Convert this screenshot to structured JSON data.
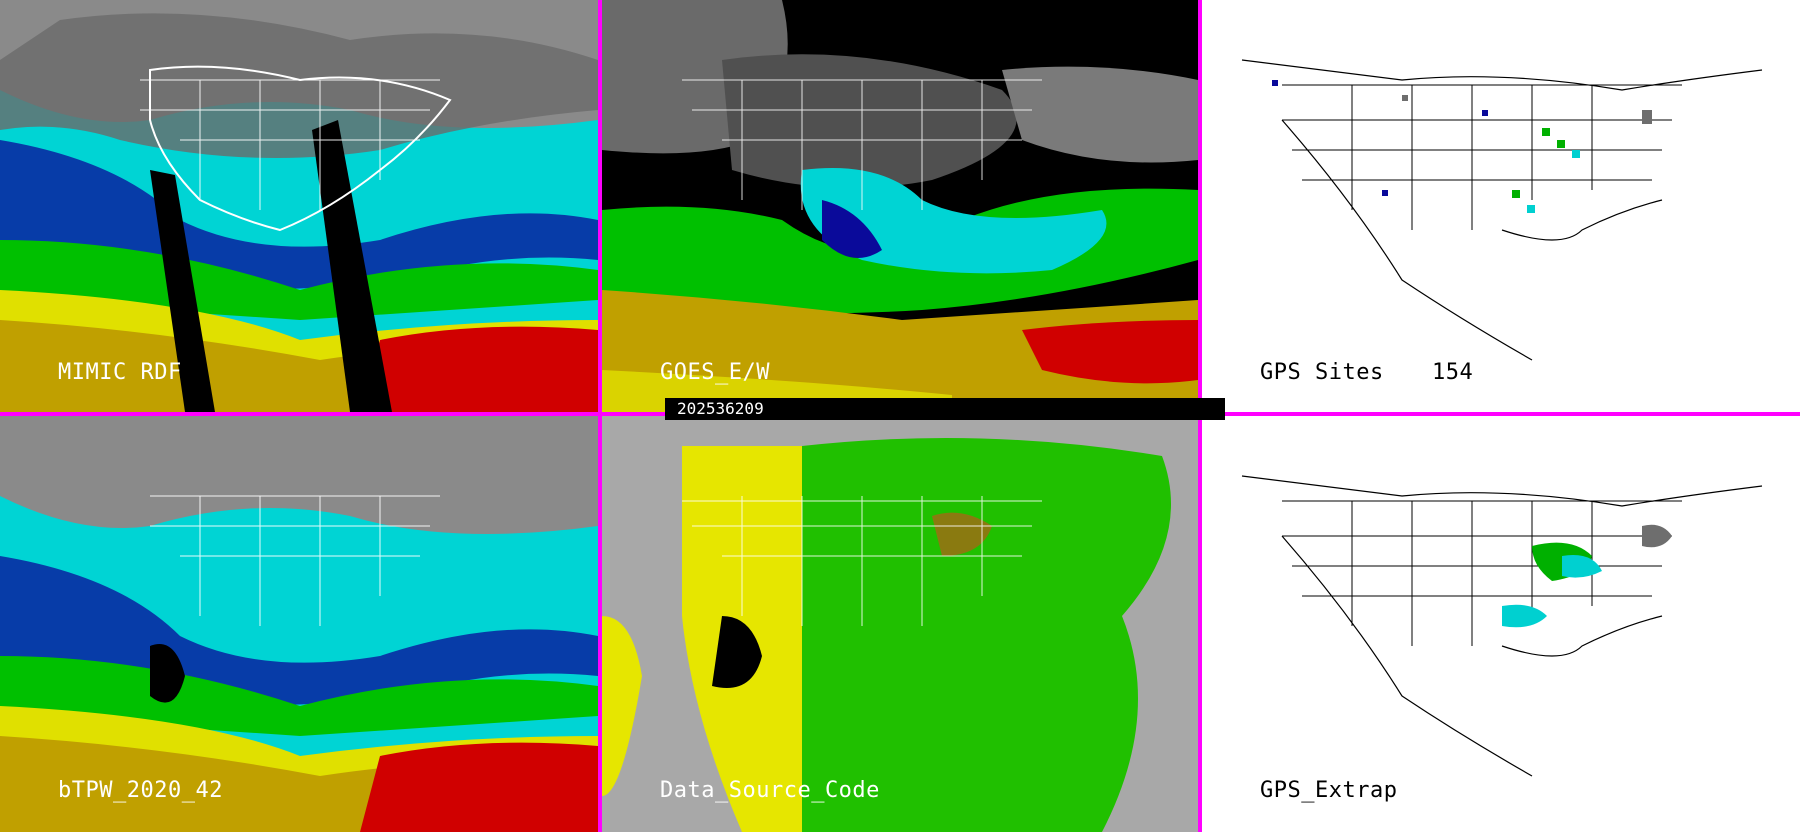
{
  "panels": [
    {
      "id": "mimic",
      "label": "MIMIC RDF"
    },
    {
      "id": "goes",
      "label": "GOES_E/W"
    },
    {
      "id": "gps-sites",
      "label": "GPS Sites",
      "count": "154"
    },
    {
      "id": "bltpw",
      "label": "bTPW_2020_42"
    },
    {
      "id": "datasource",
      "label": "Data_Source_Code"
    },
    {
      "id": "gps-extrap",
      "label": "GPS_Extrap"
    }
  ],
  "timestamp": "202536209",
  "colors": {
    "separator": "#ff00ff",
    "scale": [
      "#6e6e6e",
      "#0a0a9a",
      "#1aa0e6",
      "#00e0e0",
      "#00c000",
      "#e0e000",
      "#c0a000",
      "#d00000"
    ],
    "source_gray": "#a8a8a8",
    "source_yellow": "#e6e600",
    "source_green": "#20c000",
    "source_olive": "#8a7a10"
  }
}
